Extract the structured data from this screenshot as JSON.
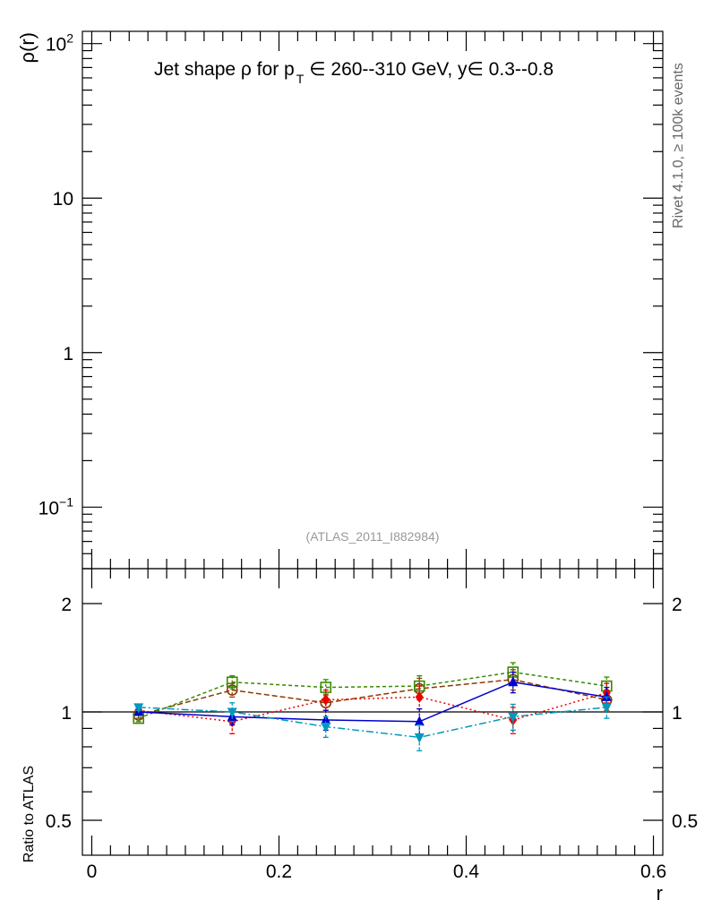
{
  "title_main": "Jet shape ρ for p",
  "title_sub": "T",
  "title_rest": "∈ 260--310 GeV, y∈ 0.3--0.8",
  "side_label": "Rivet 4.1.0, ≥ 100k events",
  "analysis_label": "(ATLAS_2011_I882984)",
  "chart_data": [
    {
      "type": "line",
      "panel": "main",
      "ylabel": "ρ(r)",
      "yscale": "log",
      "ylim": [
        0.04,
        120
      ],
      "xlim": [
        -0.01,
        0.61
      ],
      "y_ticks": [
        {
          "value": 0.1,
          "base": "10",
          "exp": "−1"
        },
        {
          "value": 1,
          "label": "1"
        },
        {
          "value": 10,
          "label": "10"
        },
        {
          "value": 100,
          "base": "10",
          "exp": "2"
        }
      ],
      "series": []
    },
    {
      "type": "line",
      "panel": "ratio",
      "xlabel": "r",
      "ylabel": "Ratio to ATLAS",
      "yscale": "log",
      "ylim": [
        0.4,
        2.5
      ],
      "xlim": [
        -0.01,
        0.61
      ],
      "x_ticks": [
        {
          "value": 0,
          "label": "0"
        },
        {
          "value": 0.2,
          "label": "0.2"
        },
        {
          "value": 0.4,
          "label": "0.4"
        },
        {
          "value": 0.6,
          "label": "0.6"
        }
      ],
      "y_ticks": [
        {
          "value": 0.5,
          "label": "0.5"
        },
        {
          "value": 1,
          "label": "1"
        },
        {
          "value": 2,
          "label": "2"
        }
      ],
      "reference_line": 1,
      "x": [
        0.05,
        0.15,
        0.25,
        0.35,
        0.45,
        0.55
      ],
      "series": [
        {
          "color": "#8b3a00",
          "dash": "6,3",
          "marker": "circle-open",
          "values": [
            0.98,
            1.15,
            1.06,
            1.16,
            1.23,
            1.08
          ],
          "errors": [
            0.02,
            0.05,
            0.06,
            0.08,
            0.08,
            0.07
          ]
        },
        {
          "color": "#3a8a00",
          "dash": "4,3",
          "marker": "square-open",
          "values": [
            0.96,
            1.21,
            1.17,
            1.18,
            1.29,
            1.18
          ],
          "errors": [
            0.02,
            0.05,
            0.06,
            0.08,
            0.08,
            0.07
          ]
        },
        {
          "color": "#ee0000",
          "dash": "2,3",
          "marker": "diamond",
          "values": [
            1.01,
            0.94,
            1.08,
            1.1,
            0.95,
            1.13
          ],
          "errors": [
            0.02,
            0.07,
            0.07,
            0.08,
            0.08,
            0.07
          ]
        },
        {
          "color": "#0000cc",
          "dash": "",
          "marker": "triangle-up",
          "values": [
            1.0,
            0.97,
            0.95,
            0.94,
            1.21,
            1.1
          ],
          "errors": [
            0.02,
            0.05,
            0.06,
            0.08,
            0.08,
            0.07
          ]
        },
        {
          "color": "#0099bb",
          "dash": "8,3,2,3",
          "marker": "triangle-down",
          "values": [
            1.03,
            1.0,
            0.91,
            0.85,
            0.97,
            1.03
          ],
          "errors": [
            0.02,
            0.06,
            0.06,
            0.07,
            0.08,
            0.07
          ]
        }
      ]
    }
  ]
}
